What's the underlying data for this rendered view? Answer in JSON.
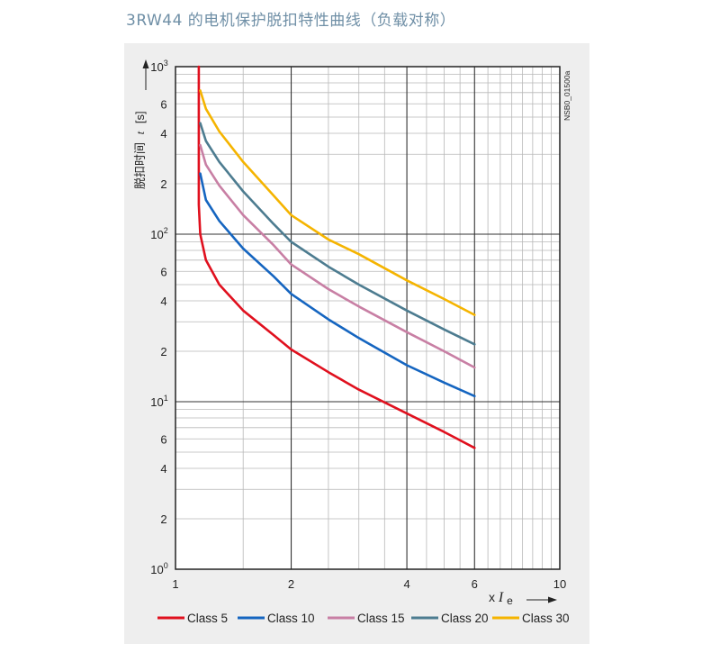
{
  "page_title": "3RW44 的电机保护脱扣特性曲线（负载对称）",
  "chart_data": {
    "type": "line",
    "x_scale": "log",
    "y_scale": "log",
    "xlim": [
      1,
      10
    ],
    "ylim": [
      1,
      1000
    ],
    "ylabel_text": "脱扣时间",
    "ylabel_var": "t",
    "ylabel_unit": "[s]",
    "xlabel_prefix": "x",
    "xlabel_var": "I",
    "xlabel_sub": "e",
    "code": "NSB0_01500a",
    "grid": true,
    "legend_position": "bottom",
    "x_ticks": [
      {
        "value": 1,
        "label": "1"
      },
      {
        "value": 2,
        "label": "2"
      },
      {
        "value": 4,
        "label": "4"
      },
      {
        "value": 6,
        "label": "6"
      },
      {
        "value": 10,
        "label": "10"
      }
    ],
    "y_ticks": [
      {
        "value": 1,
        "base": "10",
        "exp": "0"
      },
      {
        "value": 2,
        "base": "2",
        "exp": ""
      },
      {
        "value": 4,
        "base": "4",
        "exp": ""
      },
      {
        "value": 6,
        "base": "6",
        "exp": ""
      },
      {
        "value": 10,
        "base": "10",
        "exp": "1"
      },
      {
        "value": 20,
        "base": "2",
        "exp": ""
      },
      {
        "value": 40,
        "base": "4",
        "exp": ""
      },
      {
        "value": 60,
        "base": "6",
        "exp": ""
      },
      {
        "value": 100,
        "base": "10",
        "exp": "2"
      },
      {
        "value": 200,
        "base": "2",
        "exp": ""
      },
      {
        "value": 400,
        "base": "4",
        "exp": ""
      },
      {
        "value": 600,
        "base": "6",
        "exp": ""
      },
      {
        "value": 1000,
        "base": "10",
        "exp": "3"
      }
    ],
    "series": [
      {
        "name": "Class 5",
        "color": "#e0101e",
        "points": [
          [
            1.15,
            1000
          ],
          [
            1.15,
            400
          ],
          [
            1.15,
            150
          ],
          [
            1.16,
            100
          ],
          [
            1.2,
            70
          ],
          [
            1.3,
            50
          ],
          [
            1.5,
            35
          ],
          [
            1.8,
            25
          ],
          [
            2,
            20.5
          ],
          [
            2.5,
            15
          ],
          [
            3,
            11.8
          ],
          [
            4,
            8.5
          ],
          [
            5,
            6.6
          ],
          [
            6,
            5.3
          ]
        ]
      },
      {
        "name": "Class 10",
        "color": "#1565c0",
        "points": [
          [
            1.16,
            230
          ],
          [
            1.2,
            160
          ],
          [
            1.3,
            120
          ],
          [
            1.5,
            82
          ],
          [
            1.8,
            56
          ],
          [
            2,
            44
          ],
          [
            2.5,
            31
          ],
          [
            3,
            24
          ],
          [
            4,
            16.5
          ],
          [
            5,
            13
          ],
          [
            6,
            10.8
          ]
        ]
      },
      {
        "name": "Class 15",
        "color": "#c87fa4",
        "points": [
          [
            1.16,
            340
          ],
          [
            1.2,
            260
          ],
          [
            1.3,
            195
          ],
          [
            1.5,
            130
          ],
          [
            1.8,
            86
          ],
          [
            2,
            66
          ],
          [
            2.5,
            47
          ],
          [
            3,
            37
          ],
          [
            4,
            26
          ],
          [
            5,
            20
          ],
          [
            6,
            16
          ]
        ]
      },
      {
        "name": "Class 20",
        "color": "#4d7c90",
        "points": [
          [
            1.16,
            460
          ],
          [
            1.2,
            360
          ],
          [
            1.3,
            270
          ],
          [
            1.5,
            180
          ],
          [
            1.8,
            115
          ],
          [
            2,
            90
          ],
          [
            2.5,
            64
          ],
          [
            3,
            50
          ],
          [
            4,
            35
          ],
          [
            5,
            27
          ],
          [
            6,
            22
          ]
        ]
      },
      {
        "name": "Class 30",
        "color": "#f5b400",
        "points": [
          [
            1.16,
            720
          ],
          [
            1.2,
            560
          ],
          [
            1.3,
            410
          ],
          [
            1.5,
            270
          ],
          [
            1.8,
            170
          ],
          [
            2,
            130
          ],
          [
            2.5,
            93
          ],
          [
            3,
            76
          ],
          [
            4,
            53
          ],
          [
            5,
            41
          ],
          [
            6,
            33
          ]
        ]
      }
    ]
  }
}
